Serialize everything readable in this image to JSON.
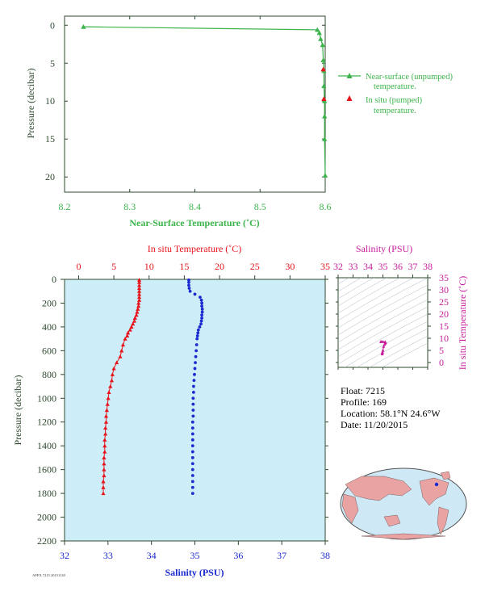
{
  "colors": {
    "green": "#3cb44b",
    "red": "#e8141c",
    "blue": "#1a2ad0",
    "magenta": "#c81e9b",
    "axis_dark": "#2e4a2e",
    "panel_bg": "#cdeef8"
  },
  "info": {
    "float": "Float:  7215",
    "profile": "Profile:  169",
    "location": "Location:  58.1°N  24.6°W",
    "date": "Date:  11/20/2015"
  },
  "footer_id": "APEX 7215 20151120",
  "chart_data": [
    {
      "type": "line",
      "xlabel": "Near-Surface Temperature (˚C)",
      "ylabel": "Pressure (decibar)",
      "xlim": [
        8.2,
        8.6
      ],
      "ylim": [
        22,
        -1.2
      ],
      "xticks": [
        "8.2",
        "8.3",
        "8.4",
        "8.5",
        "8.6"
      ],
      "yticks": [
        "0",
        "5",
        "10",
        "15",
        "20"
      ],
      "legend": {
        "placement": "right",
        "entries": [
          {
            "line1": "Near-surface (unpumped)",
            "line2": "temperature.",
            "color": "#3cb44b",
            "marker": "triangle-line"
          },
          {
            "line1": "In situ (pumped)",
            "line2": "temperature.",
            "color": "#e8141c",
            "marker": "triangle"
          }
        ]
      },
      "series": [
        {
          "name": "Near-surface (unpumped) temperature.",
          "color": "#3cb44b",
          "x": [
            8.229,
            8.588,
            8.591,
            8.593,
            8.596,
            8.597,
            8.598,
            8.598,
            8.599,
            8.599,
            8.599,
            8.6
          ],
          "y": [
            0.2,
            0.6,
            1.0,
            1.8,
            2.6,
            4.6,
            6.0,
            8.0,
            10.0,
            12.0,
            15.0,
            19.8
          ]
        },
        {
          "name": "In situ (pumped) temperature.",
          "color": "#e8141c",
          "x": [
            8.597,
            8.598
          ],
          "y": [
            5.8,
            9.7
          ]
        }
      ]
    },
    {
      "type": "line",
      "ylabel": "Pressure (decibar)",
      "ylim": [
        2200,
        0
      ],
      "yticks": [
        "0",
        "200",
        "400",
        "600",
        "800",
        "1000",
        "1200",
        "1400",
        "1600",
        "1800",
        "2000",
        "2200"
      ],
      "top_axis": {
        "label": "In situ Temperature (˚C)",
        "lim": [
          -2,
          35
        ],
        "ticks": [
          "0",
          "5",
          "10",
          "15",
          "20",
          "25",
          "30",
          "35"
        ]
      },
      "bottom_axis": {
        "label": "Salinity (PSU)",
        "lim": [
          32,
          38
        ],
        "ticks": [
          "32",
          "33",
          "34",
          "35",
          "36",
          "37",
          "38"
        ]
      },
      "series": [
        {
          "name": "In situ Temperature",
          "axis": "top",
          "color": "#e8141c",
          "pressure": [
            5,
            25,
            50,
            75,
            100,
            125,
            150,
            175,
            200,
            225,
            250,
            275,
            300,
            325,
            350,
            375,
            400,
            425,
            450,
            475,
            500,
            550,
            600,
            650,
            700,
            750,
            800,
            850,
            900,
            950,
            1000,
            1050,
            1100,
            1150,
            1200,
            1250,
            1300,
            1350,
            1400,
            1450,
            1500,
            1550,
            1600,
            1650,
            1700,
            1750,
            1800
          ],
          "values": [
            8.6,
            8.6,
            8.6,
            8.6,
            8.6,
            8.6,
            8.6,
            8.6,
            8.5,
            8.5,
            8.4,
            8.3,
            8.2,
            8.0,
            7.9,
            7.7,
            7.5,
            7.3,
            7.0,
            6.9,
            6.6,
            6.3,
            6.1,
            5.9,
            5.4,
            5.0,
            4.8,
            4.7,
            4.5,
            4.3,
            4.2,
            4.1,
            4.0,
            3.9,
            3.9,
            3.8,
            3.8,
            3.7,
            3.7,
            3.7,
            3.6,
            3.6,
            3.6,
            3.6,
            3.5,
            3.5,
            3.5
          ]
        },
        {
          "name": "Salinity",
          "axis": "bottom",
          "color": "#1a2ad0",
          "pressure": [
            5,
            25,
            50,
            75,
            100,
            125,
            150,
            175,
            200,
            225,
            250,
            275,
            300,
            325,
            350,
            375,
            400,
            425,
            450,
            475,
            500,
            550,
            600,
            650,
            700,
            750,
            800,
            850,
            900,
            950,
            1000,
            1050,
            1100,
            1150,
            1200,
            1250,
            1300,
            1350,
            1400,
            1450,
            1500,
            1550,
            1600,
            1650,
            1700,
            1750,
            1800
          ],
          "values": [
            34.86,
            34.86,
            34.86,
            34.87,
            34.89,
            35.0,
            35.12,
            35.15,
            35.16,
            35.16,
            35.17,
            35.17,
            35.16,
            35.16,
            35.15,
            35.14,
            35.11,
            35.08,
            35.07,
            35.06,
            35.05,
            35.04,
            35.03,
            35.02,
            35.01,
            35.0,
            34.99,
            34.98,
            34.97,
            34.97,
            34.96,
            34.96,
            34.96,
            34.96,
            34.95,
            34.95,
            34.95,
            34.95,
            34.95,
            34.95,
            34.95,
            34.95,
            34.95,
            34.95,
            34.95,
            34.95,
            34.95
          ]
        }
      ]
    },
    {
      "type": "scatter",
      "xlabel": "Salinity (PSU)",
      "ylabel": "In situ Temperature (˚C)",
      "xlim": [
        32,
        38
      ],
      "ylim": [
        -2,
        35
      ],
      "xticks": [
        "32",
        "33",
        "34",
        "35",
        "36",
        "37",
        "38"
      ],
      "yticks": [
        "0",
        "5",
        "10",
        "15",
        "20",
        "25",
        "30",
        "35"
      ],
      "series": [
        {
          "name": "T-S",
          "color": "#c81e9b",
          "x": [
            34.86,
            34.89,
            35.0,
            35.15,
            35.17,
            35.16,
            35.11,
            35.05,
            35.0,
            34.97,
            34.96,
            34.95
          ],
          "y": [
            8.6,
            8.6,
            8.6,
            8.5,
            8.3,
            8.0,
            7.5,
            6.6,
            5.0,
            4.3,
            3.9,
            3.5
          ]
        }
      ]
    }
  ]
}
